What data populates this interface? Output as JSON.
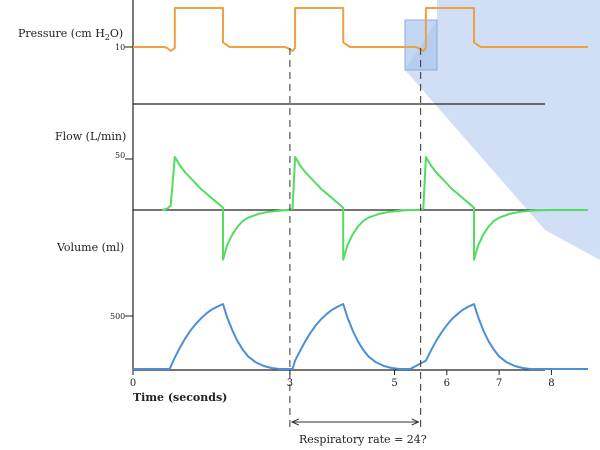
{
  "chart_data": {
    "type": "line",
    "panels": [
      {
        "name": "pressure",
        "ylabel_main": "Pressure (cm H",
        "ylabel_sub": "2",
        "ylabel_end": "O)",
        "tick_label": "10",
        "tick_value": 10,
        "ylim": [
          0,
          30
        ],
        "color": "#F0A040",
        "series": [
          {
            "x": [
              0.0,
              0.6,
              0.65,
              0.72,
              0.8,
              0.8,
              1.72,
              1.72,
              1.85,
              2.9,
              2.96,
              3.05,
              3.1,
              3.1,
              4.02,
              4.02,
              4.15,
              5.4,
              5.46,
              5.55,
              5.6,
              5.6,
              6.52,
              6.52,
              6.65,
              8.7
            ],
            "y": [
              10,
              10,
              9.6,
              8.3,
              9.5,
              27,
              27,
              12,
              10,
              10,
              9.5,
              8.3,
              9.5,
              27,
              27,
              12,
              10,
              10,
              9.5,
              8.3,
              9.5,
              27,
              27,
              12,
              10,
              10
            ]
          }
        ]
      },
      {
        "name": "flow",
        "ylabel": "Flow (L/min)",
        "tick_label": "50",
        "tick_value": 50,
        "ylim": [
          -50,
          55
        ],
        "color": "#50DD60",
        "series": [
          {
            "x": [
              0.55,
              0.65,
              0.72,
              0.8,
              0.9,
              1.0,
              1.1,
              1.2,
              1.3,
              1.4,
              1.5,
              1.6,
              1.72,
              1.72,
              1.8,
              1.9,
              2.0,
              2.1,
              2.2,
              2.4,
              2.6,
              2.8,
              2.95,
              3.05,
              3.1,
              3.2,
              3.3,
              3.4,
              3.5,
              3.6,
              3.7,
              3.8,
              3.9,
              4.02,
              4.02,
              4.1,
              4.2,
              4.3,
              4.4,
              4.5,
              4.7,
              4.9,
              5.1,
              5.3,
              5.45,
              5.55,
              5.6,
              5.7,
              5.8,
              5.9,
              6.0,
              6.1,
              6.2,
              6.3,
              6.4,
              6.52,
              6.52,
              6.6,
              6.7,
              6.8,
              6.9,
              7.0,
              7.2,
              7.4,
              7.6,
              7.8,
              8.0,
              8.7
            ],
            "y": [
              0,
              1.0,
              4.0,
              48.0,
              40.0,
              34.0,
              29.0,
              24.0,
              19.0,
              15.0,
              11.0,
              7.0,
              2.0,
              -45.0,
              -32.0,
              -22.0,
              -15.0,
              -10.0,
              -7.0,
              -3.5,
              -1.5,
              -0.6,
              0,
              1.0,
              48.0,
              40.0,
              34.0,
              29.0,
              24.0,
              19.0,
              15.0,
              11.0,
              7.0,
              2.0,
              -45.0,
              -32.0,
              -22.0,
              -15.0,
              -10.0,
              -7.0,
              -3.5,
              -1.5,
              -0.6,
              0,
              0,
              1.0,
              48.0,
              40.0,
              34.0,
              29.0,
              24.0,
              19.0,
              15.0,
              11.0,
              7.0,
              2.0,
              -45.0,
              -32.0,
              -22.0,
              -15.0,
              -10.0,
              -7.0,
              -3.5,
              -1.5,
              -0.6,
              -0.2,
              0,
              0
            ]
          }
        ]
      },
      {
        "name": "volume",
        "ylabel": "Volume (ml)",
        "tick_label": "500",
        "tick_value": 500,
        "ylim": [
          0,
          600
        ],
        "color": "#4A8FD8",
        "series": [
          {
            "x": [
              0.0,
              0.7,
              0.8,
              0.9,
              1.0,
              1.1,
              1.2,
              1.3,
              1.4,
              1.5,
              1.6,
              1.72,
              1.8,
              1.9,
              2.0,
              2.1,
              2.2,
              2.35,
              2.5,
              2.65,
              2.8,
              3.05,
              3.1,
              3.2,
              3.3,
              3.4,
              3.5,
              3.6,
              3.7,
              3.8,
              3.9,
              4.02,
              4.1,
              4.2,
              4.3,
              4.4,
              4.5,
              4.65,
              4.8,
              4.95,
              5.1,
              5.3,
              5.6,
              5.7,
              5.8,
              5.9,
              6.0,
              6.1,
              6.2,
              6.3,
              6.4,
              6.52,
              6.6,
              6.7,
              6.8,
              6.9,
              7.0,
              7.15,
              7.3,
              7.45,
              7.6,
              7.8,
              8.7
            ],
            "y": [
              0,
              0,
              95,
              180,
              255,
              320,
              375,
              420,
              460,
              492,
              515,
              540,
              430,
              320,
              230,
              160,
              105,
              55,
              25,
              8,
              0,
              0,
              70,
              155,
              235,
              305,
              365,
              415,
              455,
              490,
              515,
              540,
              430,
              320,
              230,
              160,
              105,
              55,
              25,
              8,
              0,
              0,
              70,
              155,
              235,
              305,
              365,
              415,
              455,
              490,
              515,
              540,
              430,
              320,
              230,
              160,
              105,
              55,
              25,
              8,
              0,
              0,
              0
            ]
          }
        ]
      }
    ],
    "x_axis": {
      "label": "Time (seconds)",
      "ticks": [
        {
          "value": 0,
          "label": "0"
        },
        {
          "value": 3,
          "label": "3"
        },
        {
          "value": 5,
          "label": "5"
        },
        {
          "value": 6,
          "label": "6"
        },
        {
          "value": 7,
          "label": "7"
        },
        {
          "value": 8,
          "label": "8"
        }
      ],
      "xlim": [
        0,
        8.7
      ]
    },
    "dashed_markers": [
      3.0,
      5.5
    ],
    "annotation": "Respiratory rate = 24?",
    "highlight_color": "#A9C4EC",
    "grid": false
  }
}
